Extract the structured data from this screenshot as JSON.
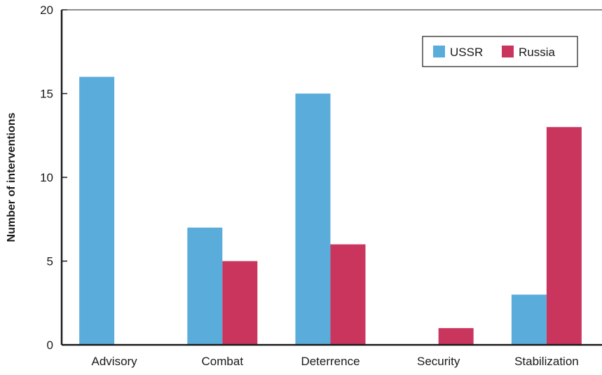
{
  "chart_data": {
    "type": "bar",
    "categories": [
      "Advisory",
      "Combat",
      "Deterrence",
      "Security",
      "Stabilization"
    ],
    "series": [
      {
        "name": "USSR",
        "color": "#5aaddb",
        "values": [
          16,
          7,
          15,
          0,
          3
        ]
      },
      {
        "name": "Russia",
        "color": "#c9355d",
        "values": [
          0,
          5,
          6,
          1,
          13
        ]
      }
    ],
    "xlabel": "",
    "ylabel": "Number of interventions",
    "ylim": [
      0,
      20
    ],
    "yticks": [
      "0",
      "5",
      "10",
      "15",
      "20"
    ],
    "grid": false,
    "legend_position": "top-right"
  }
}
